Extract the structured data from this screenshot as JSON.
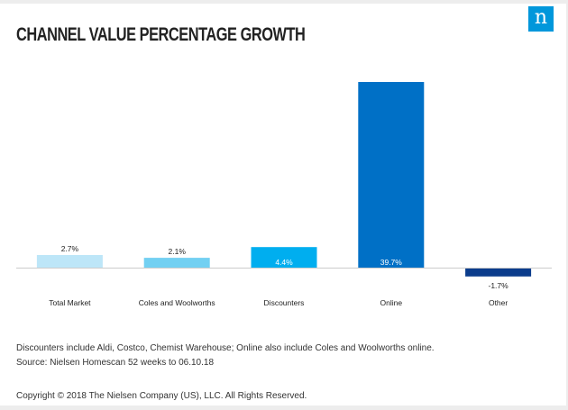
{
  "title": "CHANNEL VALUE PERCENTAGE GROWTH",
  "logo_text": "n",
  "chart_data": {
    "type": "bar",
    "title": "CHANNEL VALUE PERCENTAGE GROWTH",
    "categories": [
      "Total Market",
      "Coles and Woolworths",
      "Discounters",
      "Online",
      "Other"
    ],
    "values": [
      2.7,
      2.1,
      4.4,
      39.7,
      -1.7
    ],
    "data_labels": [
      "2.7%",
      "2.1%",
      "4.4%",
      "39.7%",
      "-1.7%"
    ],
    "colors": [
      "#bde6f8",
      "#72d0f2",
      "#00aeef",
      "#0070c6",
      "#0b3c8c"
    ],
    "label_inside": [
      false,
      false,
      true,
      true,
      false
    ],
    "xlabel": "",
    "ylabel": "",
    "ylim": [
      -1.7,
      39.7
    ],
    "grid": false,
    "legend": "none"
  },
  "footnote_1": "Discounters include Aldi, Costco, Chemist Warehouse; Online also include Coles and Woolworths online.",
  "footnote_2": "Source: Nielsen Homescan 52 weeks to 06.10.18",
  "copyright": "Copyright © 2018 The Nielsen Company (US), LLC. All Rights Reserved."
}
